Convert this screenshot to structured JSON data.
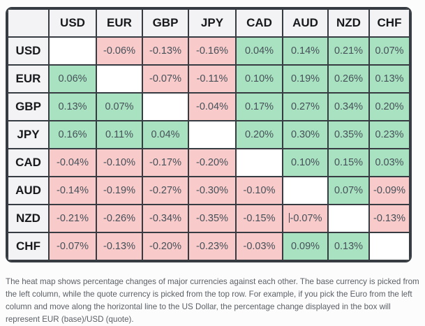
{
  "table": {
    "corner_label": "",
    "columns": [
      "USD",
      "EUR",
      "GBP",
      "JPY",
      "CAD",
      "AUD",
      "NZD",
      "CHF"
    ],
    "rows": [
      {
        "label": "USD",
        "values": [
          "",
          "-0.06%",
          "-0.13%",
          "-0.16%",
          "0.04%",
          "0.14%",
          "0.21%",
          "0.07%"
        ]
      },
      {
        "label": "EUR",
        "values": [
          "0.06%",
          "",
          "-0.07%",
          "-0.11%",
          "0.10%",
          "0.19%",
          "0.26%",
          "0.13%"
        ]
      },
      {
        "label": "GBP",
        "values": [
          "0.13%",
          "0.07%",
          "",
          "-0.04%",
          "0.17%",
          "0.27%",
          "0.34%",
          "0.20%"
        ]
      },
      {
        "label": "JPY",
        "values": [
          "0.16%",
          "0.11%",
          "0.04%",
          "",
          "0.20%",
          "0.30%",
          "0.35%",
          "0.23%"
        ]
      },
      {
        "label": "CAD",
        "values": [
          "-0.04%",
          "-0.10%",
          "-0.17%",
          "-0.20%",
          "",
          "0.10%",
          "0.15%",
          "0.03%"
        ]
      },
      {
        "label": "AUD",
        "values": [
          "-0.14%",
          "-0.19%",
          "-0.27%",
          "-0.30%",
          "-0.10%",
          "",
          "0.07%",
          "-0.09%"
        ]
      },
      {
        "label": "NZD",
        "values": [
          "-0.21%",
          "-0.26%",
          "-0.34%",
          "-0.35%",
          "-0.15%",
          "-0.07%",
          "",
          "-0.13%"
        ]
      },
      {
        "label": "CHF",
        "values": [
          "-0.07%",
          "-0.13%",
          "-0.20%",
          "-0.23%",
          "-0.03%",
          "0.09%",
          "0.13%",
          ""
        ]
      }
    ],
    "text_cursor_cell": {
      "row": "NZD",
      "col": "AUD"
    }
  },
  "colors": {
    "positive_cell": "#a9e2c1",
    "negative_cell": "#f8caca",
    "header_background": "#f3f3f5",
    "grid_border": "#363c41",
    "value_text": "#465159",
    "header_text": "#17191c"
  },
  "caption": "The heat map shows percentage changes of major currencies against each other. The base currency is picked from the left column, while the quote currency is picked from the top row. For example, if you pick the Euro from the left column and move along the horizontal line to the US Dollar, the percentage change displayed in the box will represent EUR (base)/USD (quote)."
}
